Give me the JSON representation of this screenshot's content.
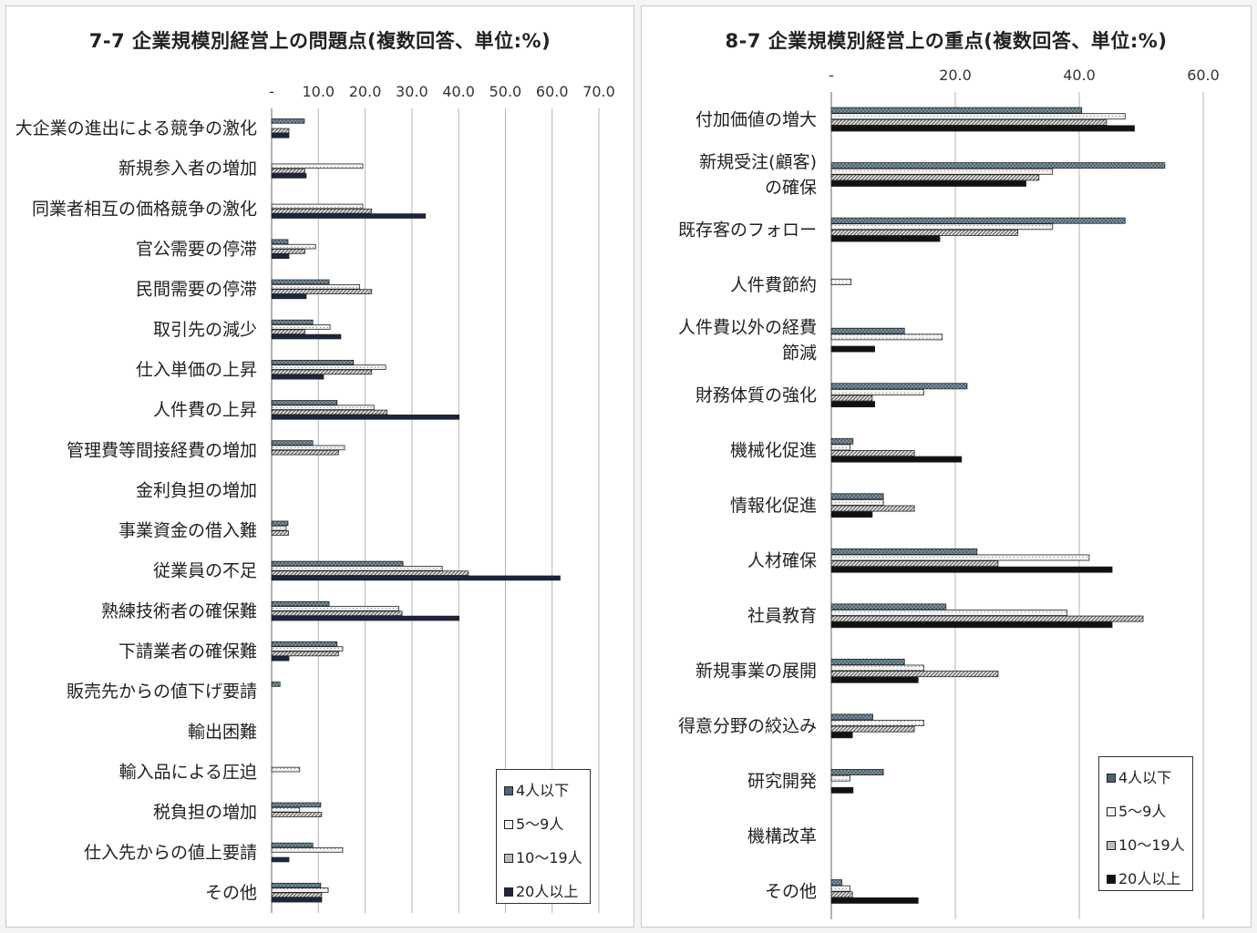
{
  "legend": {
    "s1": "4人以下",
    "s2": "5～9人",
    "s3": "10～19人",
    "s4": "20人以上"
  },
  "colors": {
    "s1": "#4d6472",
    "s2": "#ffffff",
    "s3": "#9a9a9a",
    "s4": "#1c2440",
    "s4_right": "#111111"
  },
  "chart_data": [
    {
      "type": "bar",
      "orientation": "horizontal",
      "title": "7-7 企業規模別経営上の問題点(複数回答、単位:%)",
      "xlim": [
        0,
        70
      ],
      "xticks": [
        "-",
        "10.0",
        "20.0",
        "30.0",
        "40.0",
        "50.0",
        "60.0",
        "70.0"
      ],
      "grid": true,
      "legend_position": "bottom-right",
      "categories": [
        "大企業の進出による競争の激化",
        "新規参入者の増加",
        "同業者相互の価格競争の激化",
        "官公需要の停滞",
        "民間需要の停滞",
        "取引先の減少",
        "仕入単価の上昇",
        "人件費の上昇",
        "管理費等間接経費の増加",
        "金利負担の増加",
        "事業資金の借入難",
        "従業員の不足",
        "熟練技術者の確保難",
        "下請業者の確保難",
        "販売先からの値下げ要請",
        "輸出困難",
        "輸入品による圧迫",
        "税負担の増加",
        "仕入先からの値上要請",
        "その他"
      ],
      "series": [
        {
          "name": "4人以下",
          "values": [
            7.0,
            0.0,
            0.0,
            3.5,
            12.3,
            8.8,
            17.5,
            14.0,
            8.8,
            0.0,
            3.5,
            28.1,
            12.3,
            14.0,
            1.8,
            0.0,
            0.0,
            10.5,
            8.8,
            10.5
          ]
        },
        {
          "name": "5～9人",
          "values": [
            0.0,
            19.5,
            19.5,
            9.4,
            18.8,
            12.5,
            24.4,
            21.9,
            15.6,
            0.0,
            3.1,
            36.5,
            27.2,
            15.2,
            0.0,
            0.0,
            6.0,
            6.0,
            15.2,
            12.1
          ]
        },
        {
          "name": "10～19人",
          "values": [
            3.7,
            7.1,
            21.4,
            7.1,
            21.4,
            7.1,
            21.4,
            24.7,
            14.3,
            0.0,
            3.6,
            42.1,
            27.9,
            14.3,
            0.0,
            0.0,
            0.0,
            10.7,
            0.0,
            10.7
          ]
        },
        {
          "name": "20人以上",
          "values": [
            3.7,
            7.4,
            32.9,
            3.7,
            7.4,
            14.8,
            11.1,
            40.1,
            0.0,
            0.0,
            0.0,
            61.7,
            40.1,
            3.7,
            0.0,
            0.0,
            0.0,
            0.0,
            3.7,
            10.7
          ]
        }
      ]
    },
    {
      "type": "bar",
      "orientation": "horizontal",
      "title": "8-7 企業規模別経営上の重点(複数回答、単位:%)",
      "xlim": [
        0,
        60
      ],
      "xticks": [
        "-",
        "20.0",
        "40.0",
        "60.0"
      ],
      "grid": true,
      "legend_position": "bottom-right",
      "categories": [
        "付加価値の増大",
        "新規受注(顧客)の確保",
        "既存客のフォロー",
        "人件費節約",
        "人件費以外の経費節減",
        "財務体質の強化",
        "機械化促進",
        "情報化促進",
        "人材確保",
        "社員教育",
        "新規事業の展開",
        "得意分野の絞込み",
        "研究開発",
        "機構改革",
        "その他"
      ],
      "series": [
        {
          "name": "4人以下",
          "values": [
            40.4,
            53.8,
            47.4,
            0.0,
            11.8,
            21.9,
            3.5,
            8.4,
            23.5,
            18.5,
            11.8,
            6.7,
            8.4,
            0.0,
            1.7
          ]
        },
        {
          "name": "5～9人",
          "values": [
            47.4,
            35.7,
            35.7,
            3.2,
            17.9,
            14.9,
            3.0,
            8.4,
            41.6,
            38.0,
            14.9,
            14.9,
            3.0,
            0.0,
            3.0
          ]
        },
        {
          "name": "10～19人",
          "values": [
            44.4,
            33.5,
            30.1,
            0.0,
            0.0,
            6.6,
            13.4,
            13.4,
            26.9,
            50.3,
            26.9,
            13.4,
            0.0,
            0.0,
            3.4
          ]
        },
        {
          "name": "20人以上",
          "values": [
            48.9,
            31.4,
            17.5,
            0.0,
            7.0,
            7.0,
            21.0,
            6.6,
            45.3,
            45.3,
            14.0,
            3.4,
            3.5,
            0.0,
            14.0
          ]
        }
      ]
    }
  ]
}
